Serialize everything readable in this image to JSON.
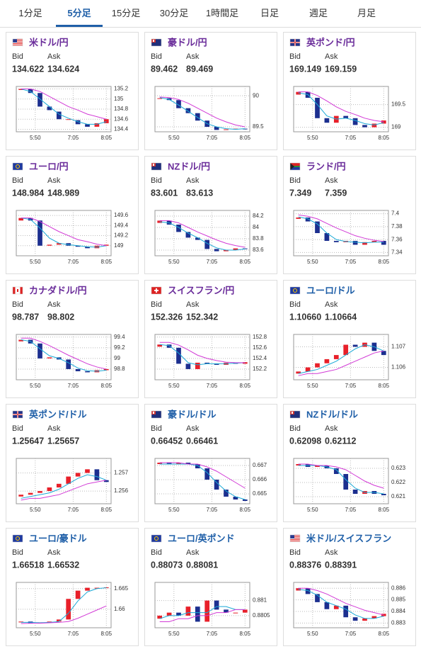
{
  "tabs": {
    "items": [
      "1分足",
      "5分足",
      "15分足",
      "30分足",
      "1時間足",
      "日足",
      "週足",
      "月足"
    ],
    "active": 1
  },
  "bid_label": "Bid",
  "ask_label": "Ask",
  "style": {
    "up_color": "#e8202a",
    "down_color": "#1c2f8f",
    "fast_color": "#1aa9d6",
    "slow_color": "#d23ad6"
  },
  "time_axis": {
    "xlim": [
      0,
      10
    ],
    "xticks": [
      {
        "value": 2,
        "label": "5:50"
      },
      {
        "value": 6,
        "label": "7:05"
      },
      {
        "value": 9.5,
        "label": "8:05"
      }
    ]
  },
  "cards": [
    {
      "name": "米ドル/円",
      "name_color": "#6a2c9a",
      "bid": "134.622",
      "ask": "134.624",
      "chart": {
        "type": "candlestick",
        "ylim": [
          134.35,
          135.25
        ],
        "yticks": [
          135.2,
          135,
          134.8,
          134.6,
          134.4
        ],
        "open": [
          135.18,
          135.2,
          135.12,
          134.85,
          134.75,
          134.6,
          134.58,
          134.5,
          134.45,
          134.52
        ],
        "close": [
          135.2,
          135.12,
          134.85,
          134.78,
          134.6,
          134.6,
          134.5,
          134.45,
          134.52,
          134.6
        ],
        "ma_fast": [
          135.2,
          135.15,
          135.0,
          134.85,
          134.7,
          134.62,
          134.55,
          134.5,
          134.5,
          134.55
        ],
        "ma_slow": [
          135.2,
          135.2,
          135.15,
          135.05,
          134.95,
          134.85,
          134.78,
          134.7,
          134.65,
          134.6
        ]
      }
    },
    {
      "name": "豪ドル/円",
      "name_color": "#6a2c9a",
      "bid": "89.462",
      "ask": "89.469",
      "chart": {
        "type": "candlestick",
        "ylim": [
          89.42,
          90.15
        ],
        "yticks": [
          90,
          89.5
        ],
        "open": [
          89.95,
          89.96,
          89.93,
          89.8,
          89.72,
          89.6,
          89.5,
          89.45,
          89.46,
          89.47
        ],
        "close": [
          89.96,
          89.93,
          89.8,
          89.72,
          89.6,
          89.5,
          89.45,
          89.46,
          89.47,
          89.46
        ],
        "ma_fast": [
          89.97,
          89.94,
          89.85,
          89.75,
          89.65,
          89.55,
          89.5,
          89.47,
          89.46,
          89.47
        ],
        "ma_slow": [
          89.98,
          89.97,
          89.94,
          89.88,
          89.8,
          89.72,
          89.64,
          89.58,
          89.53,
          89.5
        ]
      }
    },
    {
      "name": "英ポンド/円",
      "name_color": "#6a2c9a",
      "bid": "169.149",
      "ask": "169.159",
      "chart": {
        "type": "candlestick",
        "ylim": [
          168.9,
          169.9
        ],
        "yticks": [
          169.5,
          169
        ],
        "open": [
          169.72,
          169.78,
          169.65,
          169.2,
          169.1,
          169.25,
          169.2,
          169.05,
          169.0,
          169.08
        ],
        "close": [
          169.78,
          169.65,
          169.2,
          169.1,
          169.25,
          169.2,
          169.05,
          169.0,
          169.08,
          169.15
        ],
        "ma_fast": [
          169.76,
          169.72,
          169.5,
          169.25,
          169.18,
          169.2,
          169.15,
          169.08,
          169.05,
          169.1
        ],
        "ma_slow": [
          169.78,
          169.78,
          169.7,
          169.58,
          169.45,
          169.35,
          169.28,
          169.2,
          169.15,
          169.12
        ]
      }
    },
    {
      "name": "ユーロ/円",
      "name_color": "#6a2c9a",
      "bid": "148.984",
      "ask": "148.989",
      "chart": {
        "type": "candlestick",
        "ylim": [
          148.8,
          149.7
        ],
        "yticks": [
          149.6,
          149.4,
          149.2,
          149
        ],
        "open": [
          149.5,
          149.55,
          149.5,
          149.0,
          149.02,
          149.05,
          149.0,
          148.98,
          148.95,
          149.0
        ],
        "close": [
          149.55,
          149.5,
          149.0,
          149.02,
          149.05,
          149.0,
          148.98,
          148.95,
          149.0,
          149.02
        ],
        "ma_fast": [
          149.55,
          149.52,
          149.35,
          149.15,
          149.05,
          149.02,
          149.0,
          148.98,
          148.97,
          149.0
        ],
        "ma_slow": [
          149.55,
          149.55,
          149.48,
          149.38,
          149.28,
          149.2,
          149.12,
          149.08,
          149.03,
          149.0
        ]
      }
    },
    {
      "name": "NZドル/円",
      "name_color": "#6a2c9a",
      "bid": "83.601",
      "ask": "83.613",
      "chart": {
        "type": "candlestick",
        "ylim": [
          83.5,
          84.3
        ],
        "yticks": [
          84.2,
          84,
          83.8,
          83.6
        ],
        "open": [
          84.08,
          84.12,
          84.05,
          83.92,
          83.82,
          83.78,
          83.62,
          83.58,
          83.6,
          83.63
        ],
        "close": [
          84.12,
          84.05,
          83.92,
          83.82,
          83.78,
          83.62,
          83.58,
          83.6,
          83.63,
          83.62
        ],
        "ma_fast": [
          84.1,
          84.08,
          84.0,
          83.9,
          83.82,
          83.72,
          83.64,
          83.6,
          83.6,
          83.62
        ],
        "ma_slow": [
          84.12,
          84.12,
          84.08,
          84.0,
          83.92,
          83.85,
          83.78,
          83.72,
          83.68,
          83.65
        ]
      }
    },
    {
      "name": "ランド/円",
      "name_color": "#6a2c9a",
      "bid": "7.349",
      "ask": "7.359",
      "chart": {
        "type": "candlestick",
        "ylim": [
          7.335,
          7.405
        ],
        "yticks": [
          7.4,
          7.38,
          7.36,
          7.34
        ],
        "open": [
          7.392,
          7.394,
          7.388,
          7.37,
          7.358,
          7.356,
          7.358,
          7.352,
          7.356,
          7.358
        ],
        "close": [
          7.394,
          7.388,
          7.37,
          7.358,
          7.356,
          7.358,
          7.352,
          7.356,
          7.358,
          7.352
        ],
        "ma_fast": [
          7.395,
          7.392,
          7.384,
          7.37,
          7.36,
          7.357,
          7.356,
          7.355,
          7.356,
          7.356
        ],
        "ma_slow": [
          7.398,
          7.396,
          7.392,
          7.385,
          7.378,
          7.372,
          7.366,
          7.362,
          7.359,
          7.357
        ]
      }
    },
    {
      "name": "カナダドル/円",
      "name_color": "#6a2c9a",
      "bid": "98.787",
      "ask": "98.802",
      "chart": {
        "type": "candlestick",
        "ylim": [
          98.6,
          99.45
        ],
        "yticks": [
          99.4,
          99.2,
          99,
          98.8
        ],
        "open": [
          99.32,
          99.35,
          99.28,
          99.0,
          99.02,
          98.98,
          98.8,
          98.76,
          98.74,
          98.78
        ],
        "close": [
          99.35,
          99.28,
          99.0,
          99.02,
          98.98,
          98.8,
          98.76,
          98.74,
          98.78,
          98.8
        ],
        "ma_fast": [
          99.35,
          99.32,
          99.18,
          99.05,
          99.0,
          98.92,
          98.82,
          98.77,
          98.76,
          98.78
        ],
        "ma_slow": [
          99.38,
          99.38,
          99.32,
          99.24,
          99.15,
          99.06,
          98.98,
          98.9,
          98.84,
          98.8
        ]
      }
    },
    {
      "name": "スイスフラン/円",
      "name_color": "#6a2c9a",
      "bid": "152.326",
      "ask": "152.342",
      "chart": {
        "type": "candlestick",
        "ylim": [
          152.0,
          152.85
        ],
        "yticks": [
          152.8,
          152.6,
          152.4,
          152.2
        ],
        "open": [
          152.62,
          152.66,
          152.6,
          152.3,
          152.2,
          152.32,
          152.3,
          152.28,
          152.32,
          152.3
        ],
        "close": [
          152.66,
          152.6,
          152.3,
          152.2,
          152.32,
          152.3,
          152.28,
          152.32,
          152.3,
          152.33
        ],
        "ma_fast": [
          152.66,
          152.64,
          152.5,
          152.32,
          152.28,
          152.3,
          152.3,
          152.3,
          152.31,
          152.32
        ],
        "ma_slow": [
          152.7,
          152.7,
          152.65,
          152.56,
          152.46,
          152.4,
          152.36,
          152.33,
          152.32,
          152.32
        ]
      }
    },
    {
      "name": "ユーロ/ドル",
      "name_color": "#1f5fa8",
      "bid": "1.10660",
      "ask": "1.10664",
      "chart": {
        "type": "candlestick",
        "ylim": [
          1.1054,
          1.1076
        ],
        "yticks": [
          1.107,
          1.106
        ],
        "open": [
          1.1057,
          1.1058,
          1.106,
          1.1062,
          1.1064,
          1.1066,
          1.1071,
          1.107,
          1.1072,
          1.1068
        ],
        "close": [
          1.1058,
          1.106,
          1.1062,
          1.1064,
          1.1066,
          1.1071,
          1.107,
          1.1072,
          1.1068,
          1.1066
        ],
        "ma_fast": [
          1.1057,
          1.1058,
          1.1059,
          1.1061,
          1.1063,
          1.1066,
          1.1069,
          1.1071,
          1.107,
          1.1068
        ],
        "ma_slow": [
          1.1056,
          1.1057,
          1.1057,
          1.1058,
          1.1059,
          1.1061,
          1.1063,
          1.1065,
          1.1067,
          1.1068
        ]
      }
    },
    {
      "name": "英ポンド/ドル",
      "name_color": "#1f5fa8",
      "bid": "1.25647",
      "ask": "1.25657",
      "chart": {
        "type": "candlestick",
        "ylim": [
          1.2553,
          1.2578
        ],
        "yticks": [
          1.257,
          1.256
        ],
        "open": [
          1.2557,
          1.2558,
          1.2559,
          1.256,
          1.2562,
          1.2564,
          1.2568,
          1.257,
          1.2572,
          1.2566
        ],
        "close": [
          1.2558,
          1.2559,
          1.256,
          1.2562,
          1.2564,
          1.2568,
          1.257,
          1.2572,
          1.2566,
          1.2565
        ],
        "ma_fast": [
          1.2556,
          1.2557,
          1.2558,
          1.2559,
          1.2561,
          1.2564,
          1.2567,
          1.2569,
          1.2568,
          1.2566
        ],
        "ma_slow": [
          1.2555,
          1.2556,
          1.2556,
          1.2557,
          1.2558,
          1.256,
          1.2562,
          1.2564,
          1.2565,
          1.2566
        ]
      }
    },
    {
      "name": "豪ドル/ドル",
      "name_color": "#1f5fa8",
      "bid": "0.66452",
      "ask": "0.66461",
      "chart": {
        "type": "candlestick",
        "ylim": [
          0.6643,
          0.6675
        ],
        "yticks": [
          0.667,
          0.666,
          0.665
        ],
        "open": [
          0.6671,
          0.6672,
          0.6671,
          0.6672,
          0.6671,
          0.6668,
          0.666,
          0.6653,
          0.6648,
          0.6646
        ],
        "close": [
          0.6672,
          0.6671,
          0.6672,
          0.6671,
          0.6668,
          0.666,
          0.6653,
          0.6648,
          0.6646,
          0.6645
        ],
        "ma_fast": [
          0.6671,
          0.6671,
          0.6671,
          0.6671,
          0.667,
          0.6665,
          0.6658,
          0.6652,
          0.6648,
          0.6646
        ],
        "ma_slow": [
          0.6672,
          0.6672,
          0.6672,
          0.6671,
          0.6671,
          0.6669,
          0.6666,
          0.6662,
          0.6658,
          0.6654
        ]
      }
    },
    {
      "name": "NZドル/ドル",
      "name_color": "#1f5fa8",
      "bid": "0.62098",
      "ask": "0.62112",
      "chart": {
        "type": "candlestick",
        "ylim": [
          0.6205,
          0.6237
        ],
        "yticks": [
          0.623,
          0.622,
          0.621
        ],
        "open": [
          0.6232,
          0.6233,
          0.6231,
          0.6232,
          0.623,
          0.6226,
          0.6215,
          0.6212,
          0.6214,
          0.6212
        ],
        "close": [
          0.6233,
          0.6231,
          0.6232,
          0.623,
          0.6226,
          0.6215,
          0.6212,
          0.6214,
          0.6212,
          0.6211
        ],
        "ma_fast": [
          0.6232,
          0.6232,
          0.6232,
          0.6231,
          0.6229,
          0.6222,
          0.6216,
          0.6213,
          0.6213,
          0.6212
        ],
        "ma_slow": [
          0.6233,
          0.6233,
          0.6232,
          0.6232,
          0.6231,
          0.6229,
          0.6225,
          0.6221,
          0.6218,
          0.6216
        ]
      }
    },
    {
      "name": "ユーロ/豪ドル",
      "name_color": "#1f5fa8",
      "bid": "1.66518",
      "ask": "1.66532",
      "chart": {
        "type": "candlestick",
        "ylim": [
          1.6555,
          1.6665
        ],
        "yticks": [
          1.665,
          1.66
        ],
        "open": [
          1.6568,
          1.657,
          1.6566,
          1.6568,
          1.657,
          1.6575,
          1.6625,
          1.6645,
          1.6652,
          1.6652
        ],
        "close": [
          1.657,
          1.6566,
          1.6568,
          1.657,
          1.6575,
          1.6625,
          1.6645,
          1.6652,
          1.6652,
          1.6653
        ],
        "ma_fast": [
          1.6568,
          1.6568,
          1.6567,
          1.6568,
          1.657,
          1.659,
          1.662,
          1.6642,
          1.665,
          1.6652
        ],
        "ma_slow": [
          1.6565,
          1.6566,
          1.6566,
          1.6567,
          1.6568,
          1.657,
          1.6578,
          1.6588,
          1.6598,
          1.6608
        ]
      }
    },
    {
      "name": "ユーロ/英ポンド",
      "name_color": "#1f5fa8",
      "bid": "0.88073",
      "ask": "0.88081",
      "chart": {
        "type": "candlestick",
        "ylim": [
          0.8801,
          0.8816
        ],
        "yticks": [
          0.881,
          0.8805
        ],
        "open": [
          0.8804,
          0.8805,
          0.8806,
          0.8805,
          0.8808,
          0.8803,
          0.881,
          0.8807,
          0.8806,
          0.8806
        ],
        "close": [
          0.8805,
          0.8806,
          0.8805,
          0.8808,
          0.8803,
          0.881,
          0.8807,
          0.8806,
          0.8806,
          0.8807
        ],
        "ma_fast": [
          0.8804,
          0.8805,
          0.8805,
          0.8806,
          0.8806,
          0.8806,
          0.8808,
          0.8808,
          0.8807,
          0.8807
        ],
        "ma_slow": [
          0.8803,
          0.8803,
          0.8804,
          0.8804,
          0.8805,
          0.8805,
          0.8806,
          0.8806,
          0.8807,
          0.8807
        ]
      }
    },
    {
      "name": "米ドル/スイスフラン",
      "name_color": "#1f5fa8",
      "bid": "0.88376",
      "ask": "0.88391",
      "chart": {
        "type": "candlestick",
        "ylim": [
          0.8826,
          0.8865
        ],
        "yticks": [
          0.886,
          0.885,
          0.884,
          0.883
        ],
        "open": [
          0.8858,
          0.886,
          0.8855,
          0.8848,
          0.8842,
          0.8845,
          0.8835,
          0.8832,
          0.8834,
          0.8836
        ],
        "close": [
          0.886,
          0.8855,
          0.8848,
          0.8842,
          0.8845,
          0.8835,
          0.8832,
          0.8834,
          0.8836,
          0.8838
        ],
        "ma_fast": [
          0.8859,
          0.8858,
          0.8854,
          0.8848,
          0.8845,
          0.8842,
          0.8837,
          0.8834,
          0.8834,
          0.8836
        ],
        "ma_slow": [
          0.886,
          0.886,
          0.8858,
          0.8855,
          0.8851,
          0.8847,
          0.8844,
          0.8841,
          0.8839,
          0.8837
        ]
      }
    }
  ]
}
